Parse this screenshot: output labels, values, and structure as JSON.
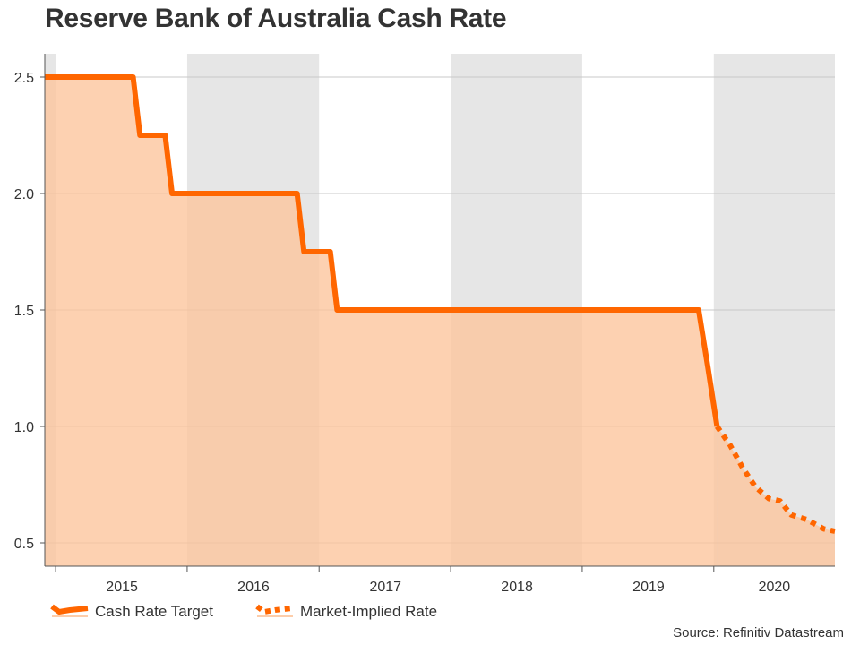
{
  "chart_data": {
    "type": "line",
    "title": "Reserve Bank of Australia Cash Rate",
    "source": "Source: Refinitiv Datastream",
    "xlabel": "",
    "ylabel": "",
    "x_range": [
      "2014-06-01",
      "2020-06-01"
    ],
    "ylim": [
      0.4,
      2.6
    ],
    "yticks": [
      0.5,
      1.0,
      1.5,
      2.0,
      2.5
    ],
    "ytick_labels": [
      "0.5",
      "1.0",
      "1.5",
      "2.0",
      "2.5"
    ],
    "xtick_labels": [
      "2015",
      "2016",
      "2017",
      "2018",
      "2019",
      "2020"
    ],
    "grid": true,
    "legend_position": "bottom-left",
    "shaded_bands": [
      {
        "start": "2014-06-01",
        "end": "2014-07-01"
      },
      {
        "start": "2015-07-01",
        "end": "2016-07-01"
      },
      {
        "start": "2017-07-01",
        "end": "2018-07-01"
      },
      {
        "start": "2019-07-01",
        "end": "2020-06-01"
      }
    ],
    "colors": {
      "line": "#ff6600",
      "fill": "#fdc49b",
      "band": "#e6e6e6",
      "grid": "#c8c8c8",
      "axis": "#555555"
    },
    "series": [
      {
        "name": "Cash Rate Target",
        "style": "solid",
        "points": [
          [
            "2014-06-01",
            2.5
          ],
          [
            "2015-02-01",
            2.5
          ],
          [
            "2015-02-20",
            2.25
          ],
          [
            "2015-05-01",
            2.25
          ],
          [
            "2015-05-20",
            2.0
          ],
          [
            "2016-05-01",
            2.0
          ],
          [
            "2016-05-20",
            1.75
          ],
          [
            "2016-08-01",
            1.75
          ],
          [
            "2016-08-20",
            1.5
          ],
          [
            "2019-05-20",
            1.5
          ],
          [
            "2019-06-15",
            1.25
          ],
          [
            "2019-07-10",
            1.0
          ]
        ]
      },
      {
        "name": "Market-Implied Rate",
        "style": "dotted",
        "points": [
          [
            "2019-07-10",
            1.0
          ],
          [
            "2019-08-15",
            0.92
          ],
          [
            "2019-09-20",
            0.82
          ],
          [
            "2019-10-25",
            0.74
          ],
          [
            "2019-12-01",
            0.69
          ],
          [
            "2020-01-01",
            0.68
          ],
          [
            "2020-02-01",
            0.62
          ],
          [
            "2020-03-15",
            0.6
          ],
          [
            "2020-05-01",
            0.56
          ],
          [
            "2020-06-01",
            0.55
          ]
        ]
      }
    ]
  }
}
